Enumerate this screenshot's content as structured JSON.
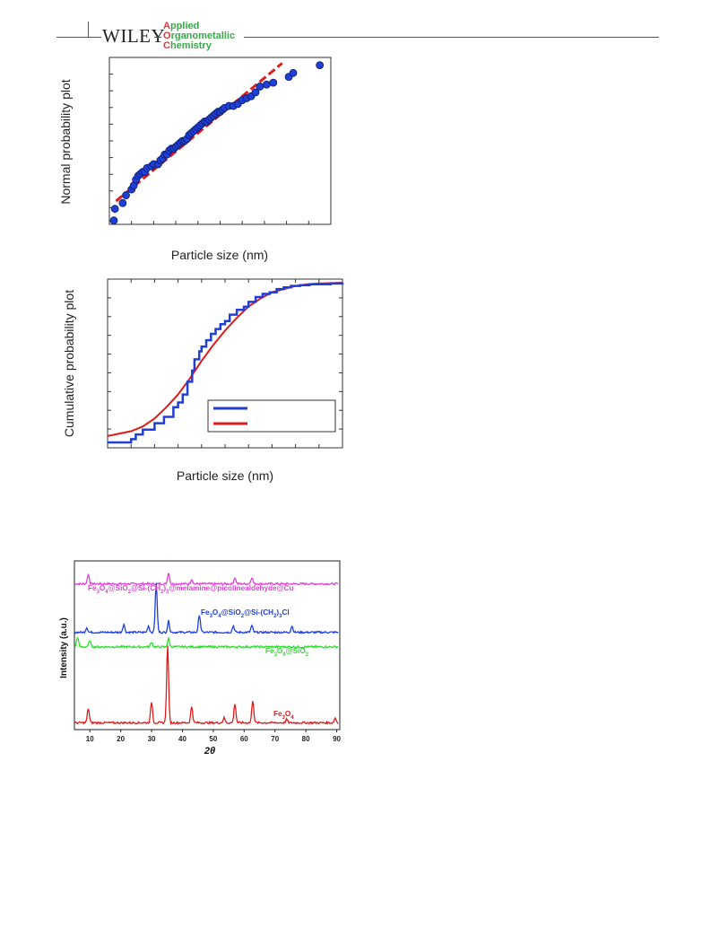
{
  "header": {
    "publisher": "WILEY",
    "journal_lines": [
      {
        "initial": "A",
        "rest": "pplied"
      },
      {
        "initial": "O",
        "rest": "rganometallic"
      },
      {
        "initial": "C",
        "rest": "hemistry"
      }
    ]
  },
  "chart_data": [
    {
      "type": "scatter",
      "ylabel": "Normal probability plot",
      "xlabel": "Particle size (nm)",
      "series": [
        {
          "role": "points",
          "color": "#1f3fd6",
          "x": [
            0.2,
            0.25,
            0.6,
            0.75,
            1.0,
            1.1,
            1.2,
            1.3,
            1.4,
            1.5,
            1.6,
            1.7,
            1.9,
            2.0,
            2.2,
            2.3,
            2.4,
            2.5,
            2.6,
            2.7,
            2.8,
            2.9,
            3.0,
            3.1,
            3.2,
            3.3,
            3.4,
            3.5,
            3.6,
            3.7,
            3.8,
            3.9,
            4.0,
            4.1,
            4.2,
            4.3,
            4.4,
            4.5,
            4.6,
            4.7,
            4.8,
            4.9,
            5.0,
            5.1,
            5.2,
            5.4,
            5.6,
            5.8,
            6.0,
            6.2,
            6.4,
            6.6,
            6.8,
            7.1,
            7.4,
            8.1,
            8.3,
            9.5
          ],
          "y": [
            0.2,
            0.8,
            1.1,
            1.5,
            1.8,
            2.0,
            2.3,
            2.5,
            2.6,
            2.7,
            2.7,
            2.9,
            3.0,
            3.1,
            3.1,
            3.3,
            3.4,
            3.6,
            3.6,
            3.8,
            3.9,
            3.9,
            4.0,
            4.1,
            4.2,
            4.3,
            4.3,
            4.4,
            4.6,
            4.7,
            4.8,
            4.9,
            5.0,
            5.1,
            5.2,
            5.3,
            5.3,
            5.4,
            5.5,
            5.6,
            5.7,
            5.8,
            5.8,
            5.9,
            6.0,
            6.1,
            6.1,
            6.2,
            6.4,
            6.5,
            6.6,
            6.8,
            7.1,
            7.2,
            7.3,
            7.6,
            7.8,
            8.2
          ]
        },
        {
          "role": "fit",
          "color": "#e01b1b",
          "x": [
            0.3,
            7.8
          ],
          "y": [
            1.2,
            8.3
          ]
        }
      ],
      "xlim": [
        0,
        10
      ],
      "ylim": [
        0,
        8.6
      ]
    },
    {
      "type": "line",
      "ylabel": "Cumulative probability plot",
      "xlabel": "Particle size (nm)",
      "series": [
        {
          "role": "empirical",
          "color": "#1f3fd6",
          "x": [
            0,
            1,
            1.2,
            1.5,
            2.0,
            2.4,
            2.8,
            3.0,
            3.2,
            3.4,
            3.6,
            3.7,
            3.9,
            4.0,
            4.2,
            4.4,
            4.6,
            4.8,
            5.0,
            5.2,
            5.5,
            5.8,
            6.0,
            6.3,
            6.6,
            6.9,
            7.2,
            7.5,
            7.8,
            8.2,
            8.6,
            9.0,
            9.5,
            10
          ],
          "y": [
            0.0,
            0.02,
            0.05,
            0.08,
            0.12,
            0.16,
            0.22,
            0.25,
            0.3,
            0.38,
            0.45,
            0.52,
            0.57,
            0.6,
            0.64,
            0.68,
            0.71,
            0.74,
            0.76,
            0.8,
            0.83,
            0.85,
            0.88,
            0.91,
            0.93,
            0.94,
            0.96,
            0.97,
            0.98,
            0.985,
            0.99,
            0.99,
            0.995,
            1.0
          ]
        },
        {
          "role": "fit",
          "color": "#e01b1b",
          "x": [
            0,
            1,
            1.5,
            2,
            2.5,
            3,
            3.5,
            4,
            4.5,
            5,
            5.5,
            6,
            6.5,
            7,
            7.5,
            8,
            8.5,
            9,
            10
          ],
          "y": [
            0.04,
            0.07,
            0.1,
            0.15,
            0.22,
            0.3,
            0.4,
            0.51,
            0.61,
            0.7,
            0.78,
            0.85,
            0.9,
            0.94,
            0.96,
            0.98,
            0.99,
            0.995,
            1.0
          ]
        }
      ],
      "legend": "bottom-right",
      "xlim": [
        0,
        10
      ],
      "ylim": [
        0,
        1
      ]
    },
    {
      "type": "line",
      "xlabel": "2θ",
      "ylabel": "Intensity (a.u.)",
      "x_ticks": [
        "10",
        "20",
        "30",
        "40",
        "50",
        "60",
        "70",
        "80",
        "90"
      ],
      "xlim": [
        5,
        91
      ],
      "series": [
        {
          "name_parts": [
            "Fe",
            "3",
            "O",
            "4",
            "@SiO",
            "2",
            "@Si-(CH",
            "2",
            ")",
            "3",
            "@melamine@picolinealdehyde@Cu"
          ],
          "color": "#e040d8",
          "baseline": 0.88,
          "peaks": [
            [
              9.5,
              0.06
            ],
            [
              35.5,
              0.07
            ],
            [
              43,
              0.03
            ],
            [
              57,
              0.04
            ],
            [
              62.5,
              0.04
            ]
          ]
        },
        {
          "name_parts": [
            "Fe",
            "3",
            "O",
            "4",
            "@SiO",
            "2",
            "@Si-(CH",
            "2",
            ")",
            "3",
            "Cl"
          ],
          "color": "#1e3ee0",
          "baseline": 0.58,
          "peaks": [
            [
              9,
              0.03
            ],
            [
              21,
              0.05
            ],
            [
              29,
              0.04
            ],
            [
              31.5,
              0.3
            ],
            [
              35.5,
              0.07
            ],
            [
              45.5,
              0.11
            ],
            [
              56.5,
              0.04
            ],
            [
              62.5,
              0.04
            ],
            [
              75.5,
              0.04
            ]
          ]
        },
        {
          "name_parts": [
            "Fe",
            "3",
            "O",
            "4",
            "@SiO",
            "2"
          ],
          "color": "#28e028",
          "baseline": 0.49,
          "peaks": [
            [
              6,
              0.06
            ],
            [
              10,
              0.04
            ],
            [
              30,
              0.03
            ],
            [
              35.5,
              0.05
            ]
          ]
        },
        {
          "name_parts": [
            "Fe",
            "3",
            "O",
            "4"
          ],
          "color": "#e01b1b",
          "baseline": 0.02,
          "peaks": [
            [
              9.5,
              0.09
            ],
            [
              30,
              0.13
            ],
            [
              35.2,
              0.48
            ],
            [
              43,
              0.1
            ],
            [
              53.5,
              0.03
            ],
            [
              57,
              0.12
            ],
            [
              62.8,
              0.14
            ],
            [
              73.8,
              0.02
            ],
            [
              89.5,
              0.03
            ]
          ]
        }
      ]
    }
  ]
}
